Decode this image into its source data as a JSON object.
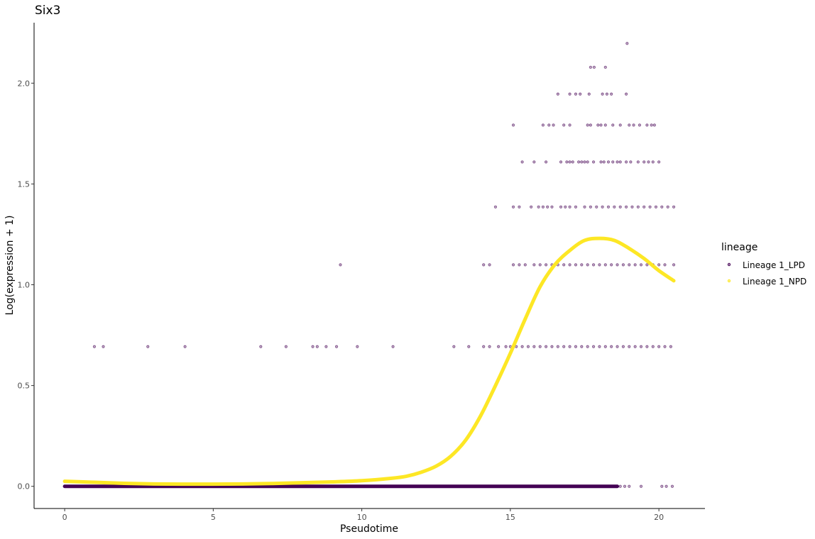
{
  "chart_data": {
    "type": "scatter",
    "title": "Six3",
    "xlabel": "Pseudotime",
    "ylabel": "Log(expression + 1)",
    "xlim": [
      -1.03,
      21.55
    ],
    "ylim": [
      -0.11,
      2.3
    ],
    "x_ticks": [
      0,
      5,
      10,
      15,
      20
    ],
    "x_tick_labels": [
      "0",
      "5",
      "10",
      "15",
      "20"
    ],
    "y_ticks": [
      0.0,
      0.5,
      1.0,
      1.5,
      2.0
    ],
    "y_tick_labels": [
      "0.0",
      "0.5",
      "1.0",
      "1.5",
      "2.0"
    ],
    "grid": false,
    "legend": {
      "title": "lineage",
      "placement": "right",
      "entries": [
        "Lineage 1_LPD",
        "Lineage 1_NPD"
      ]
    },
    "colors": {
      "points": "#440154",
      "curve": "#FDE725"
    },
    "series": [
      {
        "name": "Lineage 1_LPD",
        "kind": "points",
        "points": [
          [
            18.93,
            2.197
          ],
          [
            17.7,
            2.079
          ],
          [
            17.82,
            2.079
          ],
          [
            18.2,
            2.079
          ],
          [
            16.6,
            1.946
          ],
          [
            17.0,
            1.946
          ],
          [
            17.2,
            1.946
          ],
          [
            17.35,
            1.946
          ],
          [
            17.65,
            1.946
          ],
          [
            18.1,
            1.946
          ],
          [
            18.25,
            1.946
          ],
          [
            18.4,
            1.946
          ],
          [
            18.9,
            1.946
          ],
          [
            15.1,
            1.792
          ],
          [
            16.1,
            1.792
          ],
          [
            16.3,
            1.792
          ],
          [
            16.45,
            1.792
          ],
          [
            16.8,
            1.792
          ],
          [
            17.0,
            1.792
          ],
          [
            17.6,
            1.792
          ],
          [
            17.7,
            1.792
          ],
          [
            17.95,
            1.792
          ],
          [
            18.05,
            1.792
          ],
          [
            18.2,
            1.792
          ],
          [
            18.45,
            1.792
          ],
          [
            18.7,
            1.792
          ],
          [
            19.0,
            1.792
          ],
          [
            19.15,
            1.792
          ],
          [
            19.35,
            1.792
          ],
          [
            19.6,
            1.792
          ],
          [
            19.75,
            1.792
          ],
          [
            19.85,
            1.792
          ],
          [
            15.4,
            1.609
          ],
          [
            15.8,
            1.609
          ],
          [
            16.2,
            1.609
          ],
          [
            16.7,
            1.609
          ],
          [
            16.9,
            1.609
          ],
          [
            17.0,
            1.609
          ],
          [
            17.1,
            1.609
          ],
          [
            17.3,
            1.609
          ],
          [
            17.4,
            1.609
          ],
          [
            17.5,
            1.609
          ],
          [
            17.6,
            1.609
          ],
          [
            17.8,
            1.609
          ],
          [
            18.05,
            1.609
          ],
          [
            18.15,
            1.609
          ],
          [
            18.3,
            1.609
          ],
          [
            18.45,
            1.609
          ],
          [
            18.6,
            1.609
          ],
          [
            18.7,
            1.609
          ],
          [
            18.9,
            1.609
          ],
          [
            19.05,
            1.609
          ],
          [
            19.3,
            1.609
          ],
          [
            19.5,
            1.609
          ],
          [
            19.65,
            1.609
          ],
          [
            19.8,
            1.609
          ],
          [
            20.0,
            1.609
          ],
          [
            14.5,
            1.386
          ],
          [
            15.1,
            1.386
          ],
          [
            15.3,
            1.386
          ],
          [
            15.7,
            1.386
          ],
          [
            15.95,
            1.386
          ],
          [
            16.1,
            1.386
          ],
          [
            16.25,
            1.386
          ],
          [
            16.4,
            1.386
          ],
          [
            16.7,
            1.386
          ],
          [
            16.85,
            1.386
          ],
          [
            17.0,
            1.386
          ],
          [
            17.2,
            1.386
          ],
          [
            17.5,
            1.386
          ],
          [
            17.7,
            1.386
          ],
          [
            17.9,
            1.386
          ],
          [
            18.1,
            1.386
          ],
          [
            18.3,
            1.386
          ],
          [
            18.5,
            1.386
          ],
          [
            18.7,
            1.386
          ],
          [
            18.9,
            1.386
          ],
          [
            19.1,
            1.386
          ],
          [
            19.3,
            1.386
          ],
          [
            19.5,
            1.386
          ],
          [
            19.7,
            1.386
          ],
          [
            19.9,
            1.386
          ],
          [
            20.1,
            1.386
          ],
          [
            20.3,
            1.386
          ],
          [
            20.5,
            1.386
          ],
          [
            9.28,
            1.099
          ],
          [
            14.1,
            1.099
          ],
          [
            14.3,
            1.099
          ],
          [
            15.1,
            1.099
          ],
          [
            15.3,
            1.099
          ],
          [
            15.5,
            1.099
          ],
          [
            15.8,
            1.099
          ],
          [
            16.0,
            1.099
          ],
          [
            16.2,
            1.099
          ],
          [
            16.4,
            1.099
          ],
          [
            16.6,
            1.099
          ],
          [
            16.8,
            1.099
          ],
          [
            17.0,
            1.099
          ],
          [
            17.2,
            1.099
          ],
          [
            17.4,
            1.099
          ],
          [
            17.6,
            1.099
          ],
          [
            17.8,
            1.099
          ],
          [
            18.0,
            1.099
          ],
          [
            18.2,
            1.099
          ],
          [
            18.4,
            1.099
          ],
          [
            18.6,
            1.099
          ],
          [
            18.8,
            1.099
          ],
          [
            19.0,
            1.099
          ],
          [
            19.2,
            1.099
          ],
          [
            19.4,
            1.099
          ],
          [
            19.6,
            1.099
          ],
          [
            19.8,
            1.099
          ],
          [
            20.0,
            1.099
          ],
          [
            20.2,
            1.099
          ],
          [
            20.5,
            1.099
          ],
          [
            1.0,
            0.693
          ],
          [
            1.3,
            0.693
          ],
          [
            2.8,
            0.693
          ],
          [
            4.05,
            0.693
          ],
          [
            6.6,
            0.693
          ],
          [
            7.45,
            0.693
          ],
          [
            8.35,
            0.693
          ],
          [
            8.5,
            0.693
          ],
          [
            8.8,
            0.693
          ],
          [
            9.15,
            0.693
          ],
          [
            9.85,
            0.693
          ],
          [
            11.05,
            0.693
          ],
          [
            13.1,
            0.693
          ],
          [
            13.6,
            0.693
          ],
          [
            14.1,
            0.693
          ],
          [
            14.3,
            0.693
          ],
          [
            14.6,
            0.693
          ],
          [
            14.85,
            0.693
          ],
          [
            15.0,
            0.693
          ],
          [
            15.2,
            0.693
          ],
          [
            15.4,
            0.693
          ],
          [
            15.6,
            0.693
          ],
          [
            15.8,
            0.693
          ],
          [
            16.0,
            0.693
          ],
          [
            16.2,
            0.693
          ],
          [
            16.4,
            0.693
          ],
          [
            16.6,
            0.693
          ],
          [
            16.8,
            0.693
          ],
          [
            17.0,
            0.693
          ],
          [
            17.2,
            0.693
          ],
          [
            17.4,
            0.693
          ],
          [
            17.6,
            0.693
          ],
          [
            17.8,
            0.693
          ],
          [
            18.0,
            0.693
          ],
          [
            18.2,
            0.693
          ],
          [
            18.4,
            0.693
          ],
          [
            18.6,
            0.693
          ],
          [
            18.8,
            0.693
          ],
          [
            19.0,
            0.693
          ],
          [
            19.2,
            0.693
          ],
          [
            19.4,
            0.693
          ],
          [
            19.6,
            0.693
          ],
          [
            19.8,
            0.693
          ],
          [
            20.0,
            0.693
          ],
          [
            20.2,
            0.693
          ],
          [
            20.4,
            0.693
          ],
          [
            18.7,
            0.0
          ],
          [
            18.85,
            0.0
          ],
          [
            19.0,
            0.0
          ],
          [
            19.4,
            0.0
          ],
          [
            20.1,
            0.0
          ],
          [
            20.25,
            0.0
          ],
          [
            20.45,
            0.0
          ]
        ],
        "dense_band": {
          "y": 0.0,
          "x_from": 0.0,
          "x_to": 18.6
        }
      },
      {
        "name": "Lineage 1_NPD",
        "kind": "line",
        "x": [
          0,
          1,
          2,
          3,
          4,
          5,
          6,
          7,
          8,
          9,
          10,
          11,
          11.5,
          12,
          12.5,
          13,
          13.5,
          14,
          14.5,
          15,
          15.5,
          16,
          16.5,
          17,
          17.5,
          18,
          18.5,
          19,
          19.5,
          20,
          20.5
        ],
        "y": [
          0.025,
          0.02,
          0.015,
          0.012,
          0.011,
          0.011,
          0.012,
          0.014,
          0.018,
          0.022,
          0.028,
          0.04,
          0.05,
          0.07,
          0.1,
          0.15,
          0.23,
          0.35,
          0.5,
          0.66,
          0.83,
          0.99,
          1.1,
          1.17,
          1.22,
          1.23,
          1.22,
          1.18,
          1.13,
          1.07,
          1.02
        ]
      }
    ]
  }
}
